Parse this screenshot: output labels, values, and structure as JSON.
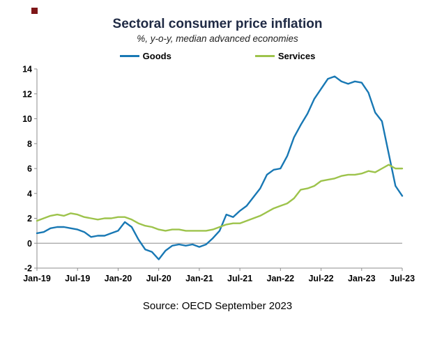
{
  "title": "Sectoral consumer price inflation",
  "subtitle": "%, y-o-y, median advanced economies",
  "source": "Source: OECD September 2023",
  "corner_mark_color": "#7e1618",
  "chart_data": {
    "type": "line",
    "title": "Sectoral consumer price inflation",
    "subtitle": "%, y-o-y, median advanced economies",
    "legend_position": "top",
    "grid": false,
    "ylim": [
      -2,
      14
    ],
    "y_ticks": [
      -2,
      0,
      2,
      4,
      6,
      8,
      10,
      12,
      14
    ],
    "x_tick_labels": [
      "Jan-19",
      "Jul-19",
      "Jan-20",
      "Jul-20",
      "Jan-21",
      "Jul-21",
      "Jan-22",
      "Jul-22",
      "Jan-23",
      "Jul-23"
    ],
    "x_tick_indices": [
      0,
      6,
      12,
      18,
      24,
      30,
      36,
      42,
      48,
      54
    ],
    "x_unit": "month",
    "series": [
      {
        "name": "Goods",
        "color": "#1878b4",
        "values": [
          0.8,
          0.9,
          1.2,
          1.3,
          1.3,
          1.2,
          1.1,
          0.9,
          0.5,
          0.6,
          0.6,
          0.8,
          1.0,
          1.7,
          1.3,
          0.3,
          -0.5,
          -0.7,
          -1.3,
          -0.6,
          -0.2,
          -0.1,
          -0.2,
          -0.1,
          -0.3,
          -0.1,
          0.4,
          1.0,
          2.3,
          2.1,
          2.6,
          3.0,
          3.7,
          4.4,
          5.5,
          5.9,
          6.0,
          7.0,
          8.5,
          9.5,
          10.4,
          11.6,
          12.4,
          13.2,
          13.4,
          13.0,
          12.8,
          13.0,
          12.9,
          12.1,
          10.5,
          9.8,
          7.2,
          4.6,
          3.8
        ]
      },
      {
        "name": "Services",
        "color": "#9dc34b",
        "values": [
          1.8,
          2.0,
          2.2,
          2.3,
          2.2,
          2.4,
          2.3,
          2.1,
          2.0,
          1.9,
          2.0,
          2.0,
          2.1,
          2.1,
          1.9,
          1.6,
          1.4,
          1.3,
          1.1,
          1.0,
          1.1,
          1.1,
          1.0,
          1.0,
          1.0,
          1.0,
          1.1,
          1.3,
          1.5,
          1.6,
          1.6,
          1.8,
          2.0,
          2.2,
          2.5,
          2.8,
          3.0,
          3.2,
          3.6,
          4.3,
          4.4,
          4.6,
          5.0,
          5.1,
          5.2,
          5.4,
          5.5,
          5.5,
          5.6,
          5.8,
          5.7,
          6.0,
          6.3,
          6.0,
          6.0
        ]
      }
    ]
  }
}
